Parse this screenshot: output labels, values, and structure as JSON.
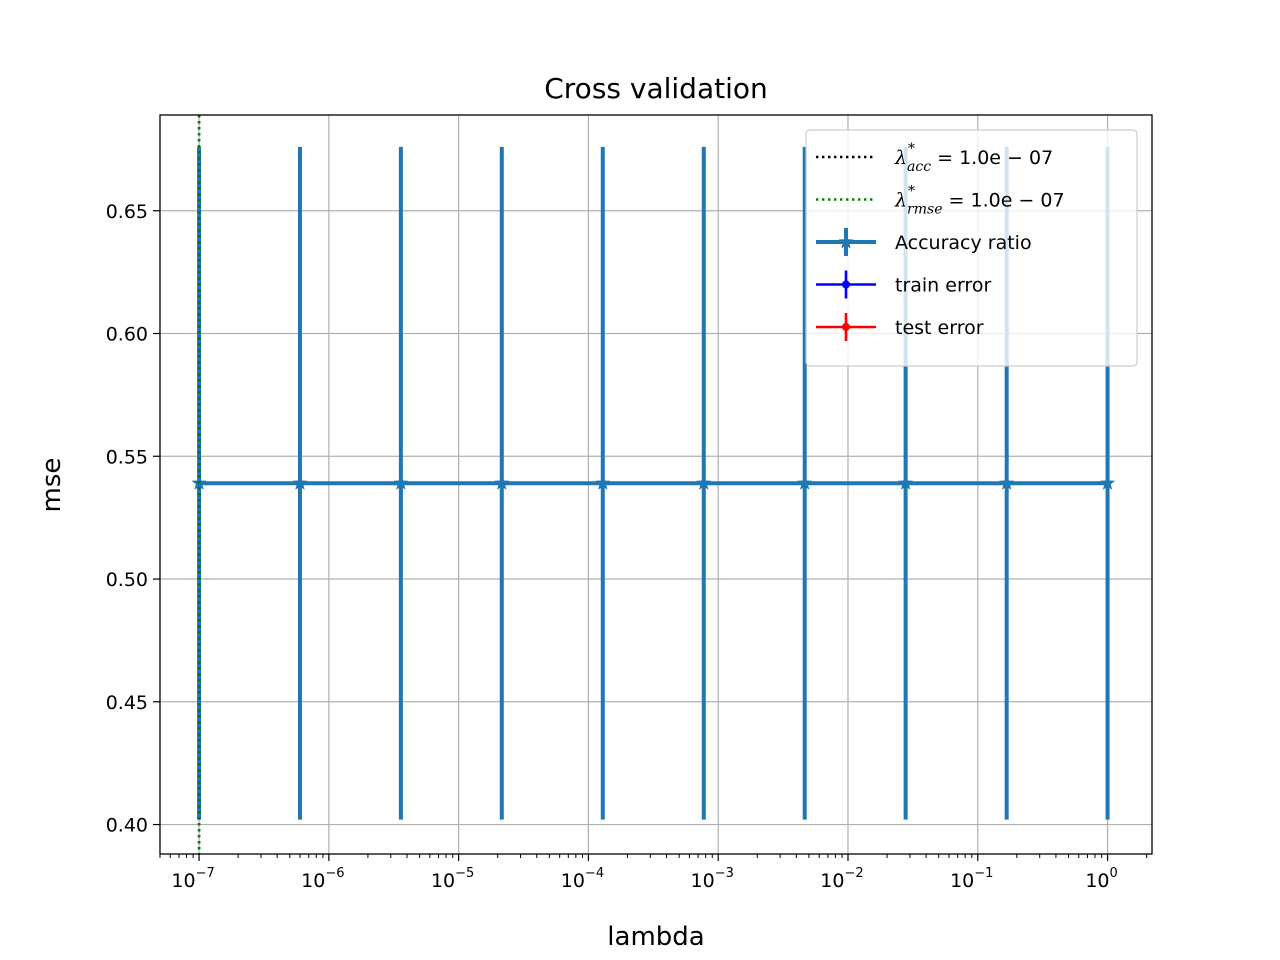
{
  "chart_data": {
    "type": "line",
    "title": "Cross validation",
    "xlabel": "lambda",
    "ylabel": "mse",
    "x_scale": "log",
    "xlim": [
      5e-08,
      2.2
    ],
    "ylim": [
      0.388,
      0.689
    ],
    "grid": true,
    "legend_position": "top-right",
    "x_ticks": [
      {
        "base": "10",
        "exp": "−7"
      },
      {
        "base": "10",
        "exp": "−6"
      },
      {
        "base": "10",
        "exp": "−5"
      },
      {
        "base": "10",
        "exp": "−4"
      },
      {
        "base": "10",
        "exp": "−3"
      },
      {
        "base": "10",
        "exp": "−2"
      },
      {
        "base": "10",
        "exp": "−1"
      },
      {
        "base": "10",
        "exp": "0"
      }
    ],
    "y_ticks": [
      "0.40",
      "0.45",
      "0.50",
      "0.55",
      "0.60",
      "0.65"
    ],
    "series": [
      {
        "name": "Accuracy ratio",
        "color": "#1f77b4",
        "marker": "star",
        "x": [
          1e-07,
          5.99e-07,
          3.59e-06,
          2.15e-05,
          0.000129,
          0.000774,
          0.00464,
          0.0278,
          0.167,
          1.0
        ],
        "y": [
          0.539,
          0.539,
          0.539,
          0.539,
          0.539,
          0.539,
          0.539,
          0.539,
          0.539,
          0.539
        ],
        "yerr": [
          0.137,
          0.137,
          0.137,
          0.137,
          0.137,
          0.137,
          0.137,
          0.137,
          0.137,
          0.137
        ]
      },
      {
        "name": "train error",
        "color": "#0000ff",
        "marker": "dot",
        "x": [],
        "y": []
      },
      {
        "name": "test error",
        "color": "#ff0000",
        "marker": "dot",
        "x": [],
        "y": []
      }
    ],
    "vlines": [
      {
        "x": 1e-07,
        "color": "#000000",
        "style": "dotted",
        "label_main": "λ",
        "label_sub": "acc",
        "label_sup": "*",
        "label_rest": " = 1.0e − 07"
      },
      {
        "x": 1e-07,
        "color": "#008000",
        "style": "dotted",
        "label_main": "λ",
        "label_sub": "rmse",
        "label_sup": "*",
        "label_rest": " = 1.0e − 07"
      }
    ]
  }
}
